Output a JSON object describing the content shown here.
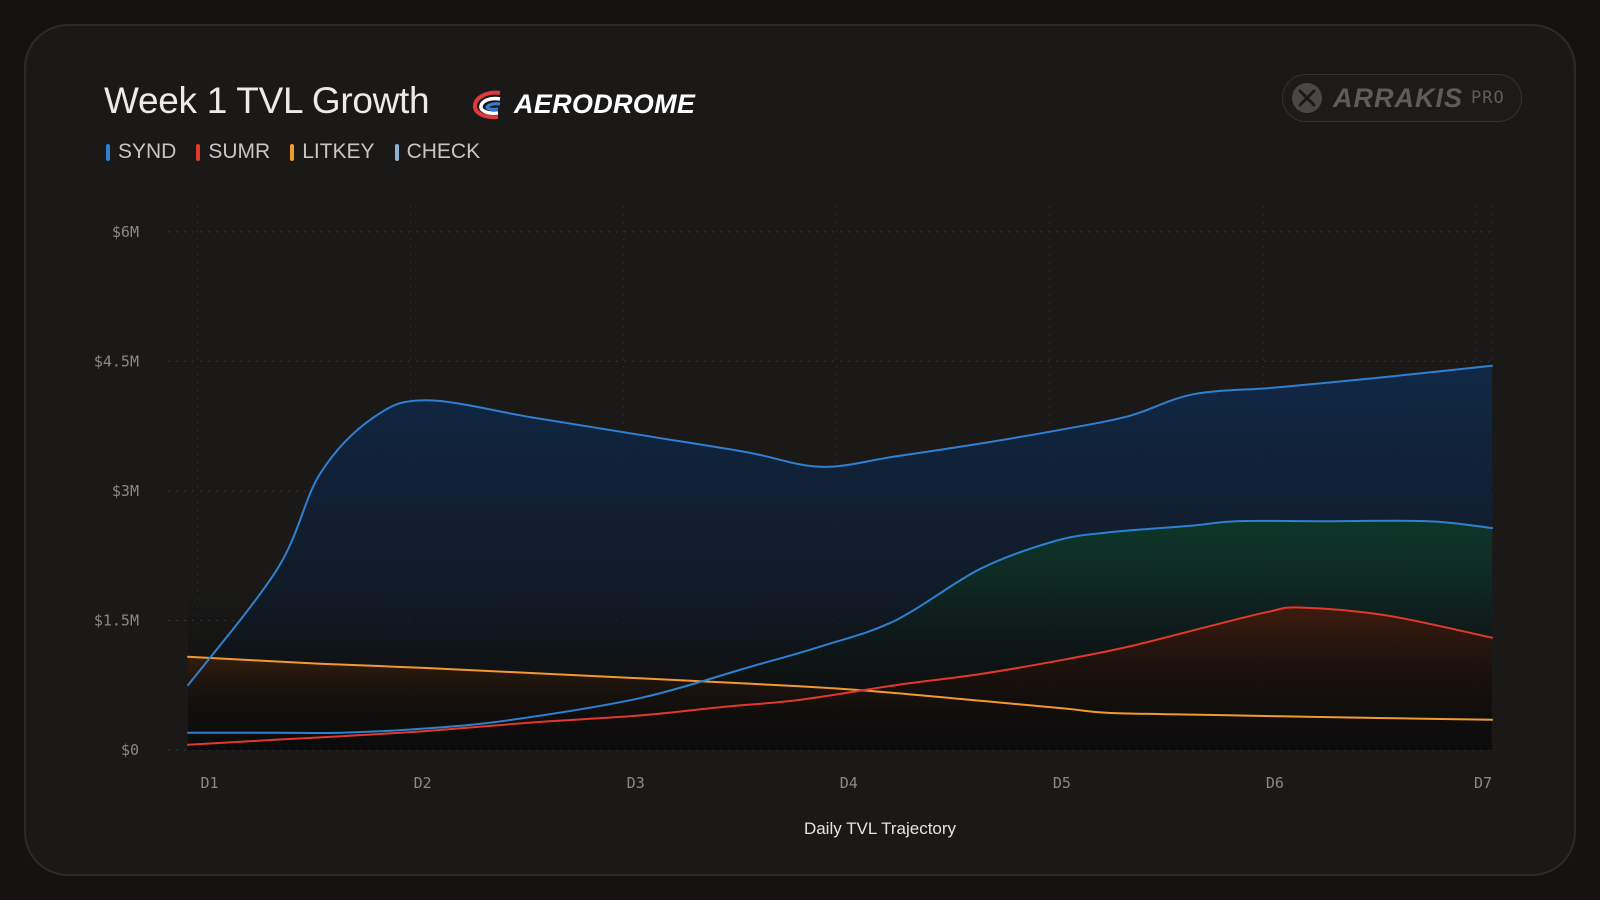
{
  "header": {
    "title": "Week 1 TVL Growth",
    "brand": "AERODROME",
    "badge_name": "ARRAKIS",
    "badge_tag": "PRO"
  },
  "legend": [
    {
      "label": "SYND",
      "color": "#2f80d1"
    },
    {
      "label": "SUMR",
      "color": "#e2392c"
    },
    {
      "label": "LITKEY",
      "color": "#f29a2e"
    },
    {
      "label": "CHECK",
      "color": "#8fb2d4"
    }
  ],
  "colors": {
    "synd_fill": "#0f2a4a",
    "check_fill": "#0e3a28",
    "sumr_fill": "#4a1e0e",
    "litkey_fill": "#5a2e0e"
  },
  "chart_data": {
    "type": "area",
    "title": "Week 1 TVL Growth",
    "xlabel": "Daily TVL Trajectory",
    "ylabel": "",
    "x": [
      0.9,
      1.5,
      2.0,
      2.8,
      3.9,
      4.2,
      5.0,
      5.4,
      5.8,
      6.2,
      6.7,
      7.0
    ],
    "categories": [
      "D1",
      "D2",
      "D3",
      "D4",
      "D5",
      "D6",
      "D7"
    ],
    "category_positions": [
      1,
      2,
      3,
      4,
      5,
      6,
      7
    ],
    "ylim": [
      0,
      6.3
    ],
    "yticks": [
      0,
      1.5,
      3,
      4.5,
      6
    ],
    "ytick_labels": [
      "$0",
      "$1.5M",
      "$3M",
      "$4.5M",
      "$6M"
    ],
    "grid": true,
    "legend_position": "top-left",
    "series": [
      {
        "name": "SYND",
        "points": [
          [
            0.88,
            0.75
          ],
          [
            1.3,
            2.1
          ],
          [
            1.5,
            3.2
          ],
          [
            1.75,
            3.85
          ],
          [
            2.0,
            4.05
          ],
          [
            2.5,
            3.85
          ],
          [
            3.0,
            3.65
          ],
          [
            3.5,
            3.45
          ],
          [
            3.85,
            3.28
          ],
          [
            4.2,
            3.4
          ],
          [
            4.6,
            3.55
          ],
          [
            5.0,
            3.72
          ],
          [
            5.3,
            3.87
          ],
          [
            5.6,
            4.12
          ],
          [
            6.0,
            4.2
          ],
          [
            6.5,
            4.32
          ],
          [
            7.0,
            4.45
          ]
        ]
      },
      {
        "name": "CHECK",
        "points": [
          [
            0.88,
            0.2
          ],
          [
            1.3,
            0.2
          ],
          [
            1.6,
            0.2
          ],
          [
            2.0,
            0.25
          ],
          [
            2.4,
            0.35
          ],
          [
            3.0,
            0.6
          ],
          [
            3.5,
            0.95
          ],
          [
            3.85,
            1.2
          ],
          [
            4.2,
            1.5
          ],
          [
            4.6,
            2.1
          ],
          [
            4.95,
            2.42
          ],
          [
            5.2,
            2.52
          ],
          [
            5.6,
            2.6
          ],
          [
            5.8,
            2.65
          ],
          [
            6.2,
            2.65
          ],
          [
            6.7,
            2.65
          ],
          [
            7.0,
            2.57
          ]
        ]
      },
      {
        "name": "SUMR",
        "points": [
          [
            0.88,
            0.06
          ],
          [
            1.3,
            0.12
          ],
          [
            1.6,
            0.16
          ],
          [
            2.0,
            0.22
          ],
          [
            2.5,
            0.32
          ],
          [
            3.0,
            0.4
          ],
          [
            3.4,
            0.5
          ],
          [
            3.75,
            0.58
          ],
          [
            4.2,
            0.75
          ],
          [
            4.6,
            0.88
          ],
          [
            5.0,
            1.05
          ],
          [
            5.3,
            1.2
          ],
          [
            5.7,
            1.45
          ],
          [
            5.95,
            1.6
          ],
          [
            6.1,
            1.65
          ],
          [
            6.5,
            1.56
          ],
          [
            7.0,
            1.3
          ]
        ]
      },
      {
        "name": "LITKEY",
        "points": [
          [
            0.88,
            1.08
          ],
          [
            1.5,
            1.0
          ],
          [
            2.0,
            0.95
          ],
          [
            2.5,
            0.89
          ],
          [
            3.0,
            0.83
          ],
          [
            3.5,
            0.77
          ],
          [
            4.0,
            0.7
          ],
          [
            4.6,
            0.57
          ],
          [
            5.0,
            0.48
          ],
          [
            5.2,
            0.43
          ],
          [
            5.6,
            0.41
          ],
          [
            6.0,
            0.39
          ],
          [
            6.5,
            0.37
          ],
          [
            7.0,
            0.35
          ]
        ]
      }
    ]
  }
}
